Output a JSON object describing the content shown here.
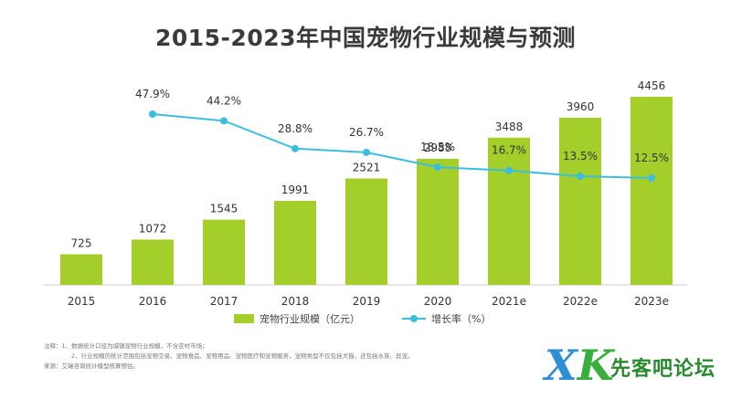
{
  "chart_data": {
    "type": "bar",
    "title": "2015-2023年中国宠物行业规模与预测",
    "categories": [
      "2015",
      "2016",
      "2017",
      "2018",
      "2019",
      "2020",
      "2021e",
      "2022e",
      "2023e"
    ],
    "series": [
      {
        "name": "宠物行业规模（亿元）",
        "type": "bar",
        "values": [
          725,
          1072,
          1545,
          1991,
          2521,
          2988,
          3488,
          3960,
          4456
        ],
        "labels": [
          "725",
          "1072",
          "1545",
          "1991",
          "2521",
          "2988",
          "3488",
          "3960",
          "4456"
        ]
      },
      {
        "name": "增长率（%）",
        "type": "line",
        "values": [
          null,
          47.9,
          44.2,
          28.8,
          26.7,
          18.5,
          16.7,
          13.5,
          12.5
        ],
        "labels": [
          "",
          "47.9%",
          "44.2%",
          "28.8%",
          "26.7%",
          "18.5%",
          "16.7%",
          "13.5%",
          "12.5%"
        ]
      }
    ],
    "ylim_bar": [
      0,
      4600
    ],
    "ylim_line": [
      0,
      60
    ],
    "legend_position": "bottom",
    "colors": {
      "bar": "#a4cf2a",
      "line": "#3bbede",
      "axis": "#cccccc"
    }
  },
  "legend": {
    "bar_label": "宠物行业规模（亿元）",
    "line_label": "增长率（%）"
  },
  "notes": {
    "line1": "注释：1、数据统计口径为城镇宠物行业规模，不含农村市场；",
    "line2": "2、行业规模的统计范围包括宠物交易、宠物食品、宠物用品、宠物医疗和宠物服务，宠物类型不仅包括犬猫，还包括水族、异宠。",
    "line3": "来源：艾瑞咨询统计模型核算预估。"
  },
  "watermark": {
    "logo_x": "X",
    "logo_k": "K",
    "text": "先客吧论坛"
  }
}
